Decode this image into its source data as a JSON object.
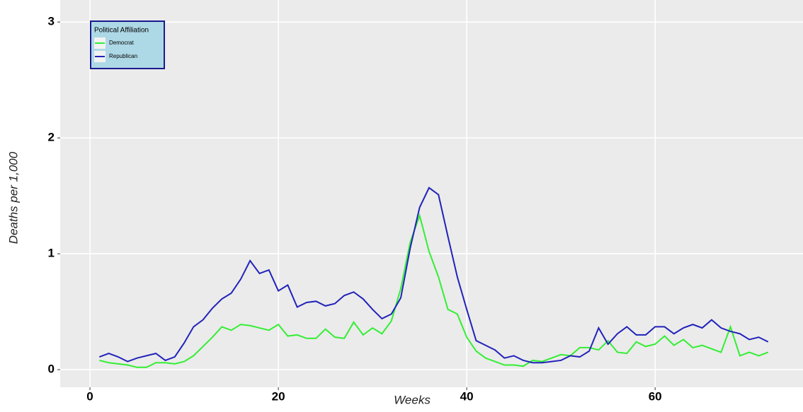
{
  "chart_data": {
    "type": "line",
    "x_label": "Weeks",
    "y_label": "Deaths per 1,000",
    "x": [
      1,
      2,
      3,
      4,
      5,
      6,
      7,
      8,
      9,
      10,
      11,
      12,
      13,
      14,
      15,
      16,
      17,
      18,
      19,
      20,
      21,
      22,
      23,
      24,
      25,
      26,
      27,
      28,
      29,
      30,
      31,
      32,
      33,
      34,
      35,
      36,
      37,
      38,
      39,
      40,
      41,
      42,
      43,
      44,
      45,
      46,
      47,
      48,
      49,
      50,
      51,
      52,
      53,
      54,
      55,
      56,
      57,
      58,
      59,
      60,
      61,
      62,
      63,
      64,
      65,
      66,
      67,
      68,
      69,
      70,
      71,
      72
    ],
    "series": [
      {
        "name": "Democrat",
        "color": "#33ee33",
        "values": [
          0.08,
          0.06,
          0.05,
          0.04,
          0.02,
          0.02,
          0.06,
          0.06,
          0.05,
          0.07,
          0.12,
          0.2,
          0.28,
          0.37,
          0.34,
          0.39,
          0.38,
          0.36,
          0.34,
          0.39,
          0.29,
          0.3,
          0.27,
          0.27,
          0.35,
          0.28,
          0.27,
          0.41,
          0.3,
          0.36,
          0.31,
          0.42,
          0.7,
          1.1,
          1.33,
          1.02,
          0.8,
          0.52,
          0.48,
          0.28,
          0.16,
          0.1,
          0.07,
          0.04,
          0.04,
          0.03,
          0.08,
          0.07,
          0.1,
          0.13,
          0.12,
          0.19,
          0.19,
          0.17,
          0.25,
          0.15,
          0.14,
          0.24,
          0.2,
          0.22,
          0.29,
          0.21,
          0.26,
          0.19,
          0.21,
          0.18,
          0.15,
          0.37,
          0.12,
          0.15,
          0.12,
          0.15
        ]
      },
      {
        "name": "Republican",
        "color": "#2222bb",
        "values": [
          0.11,
          0.14,
          0.11,
          0.07,
          0.1,
          0.12,
          0.14,
          0.08,
          0.11,
          0.23,
          0.37,
          0.43,
          0.53,
          0.61,
          0.66,
          0.78,
          0.94,
          0.83,
          0.86,
          0.68,
          0.73,
          0.54,
          0.58,
          0.59,
          0.55,
          0.57,
          0.64,
          0.67,
          0.61,
          0.52,
          0.44,
          0.48,
          0.62,
          1.05,
          1.4,
          1.57,
          1.51,
          1.15,
          0.8,
          0.52,
          0.25,
          0.21,
          0.17,
          0.1,
          0.12,
          0.08,
          0.06,
          0.06,
          0.07,
          0.08,
          0.12,
          0.11,
          0.16,
          0.36,
          0.22,
          0.31,
          0.37,
          0.3,
          0.3,
          0.37,
          0.37,
          0.31,
          0.36,
          0.39,
          0.36,
          0.43,
          0.36,
          0.33,
          0.31,
          0.26,
          0.28,
          0.24
        ]
      }
    ],
    "xlim": [
      -3.16,
      75.7
    ],
    "ylim": [
      -0.152,
      3.19
    ],
    "xticks": [
      0,
      20,
      40,
      60
    ],
    "yticks": [
      0,
      1,
      2,
      3
    ],
    "grid": true,
    "legend": {
      "title": "Political Affiliation",
      "position": "top-left"
    }
  }
}
